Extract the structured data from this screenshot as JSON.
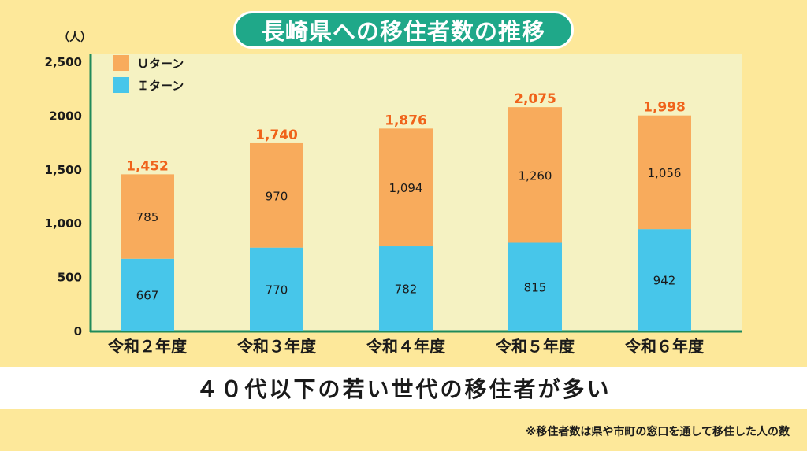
{
  "title": "長崎県への移住者数の推移",
  "subtitle": "４０代以下の若い世代の移住者が多い",
  "footnote": "※移住者数は県や市町の窓口を通して移住した人の数",
  "colors": {
    "page_bg": "#fde89a",
    "plot_bg": "#f5f2c2",
    "title_bg": "#1fa889",
    "u_turn": "#f8ab5c",
    "i_turn": "#47c6ea",
    "axis": "#1f8a5a",
    "total_label": "#f0631a"
  },
  "chart_data": {
    "type": "bar",
    "stacked": true,
    "categories": [
      "令和２年度",
      "令和３年度",
      "令和４年度",
      "令和５年度",
      "令和６年度"
    ],
    "series": [
      {
        "name": "Ｉターン",
        "values": [
          667,
          770,
          782,
          815,
          942
        ],
        "labels": [
          "667",
          "770",
          "782",
          "815",
          "942"
        ]
      },
      {
        "name": "Ｕターン",
        "values": [
          785,
          970,
          1094,
          1260,
          1056
        ],
        "labels": [
          "785",
          "970",
          "1,094",
          "1,260",
          "1,056"
        ]
      }
    ],
    "totals": [
      1452,
      1740,
      1876,
      2075,
      1998
    ],
    "total_labels": [
      "1,452",
      "1,740",
      "1,876",
      "2,075",
      "1,998"
    ],
    "yunit": "（人）",
    "yticks": [
      0,
      500,
      1000,
      1500,
      2000,
      2500
    ],
    "ytick_labels": [
      "0",
      "500",
      "1,000",
      "1,500",
      "2000",
      "2,500"
    ],
    "ylim": [
      0,
      2500
    ],
    "legend_position": "top-left",
    "grid": false
  }
}
